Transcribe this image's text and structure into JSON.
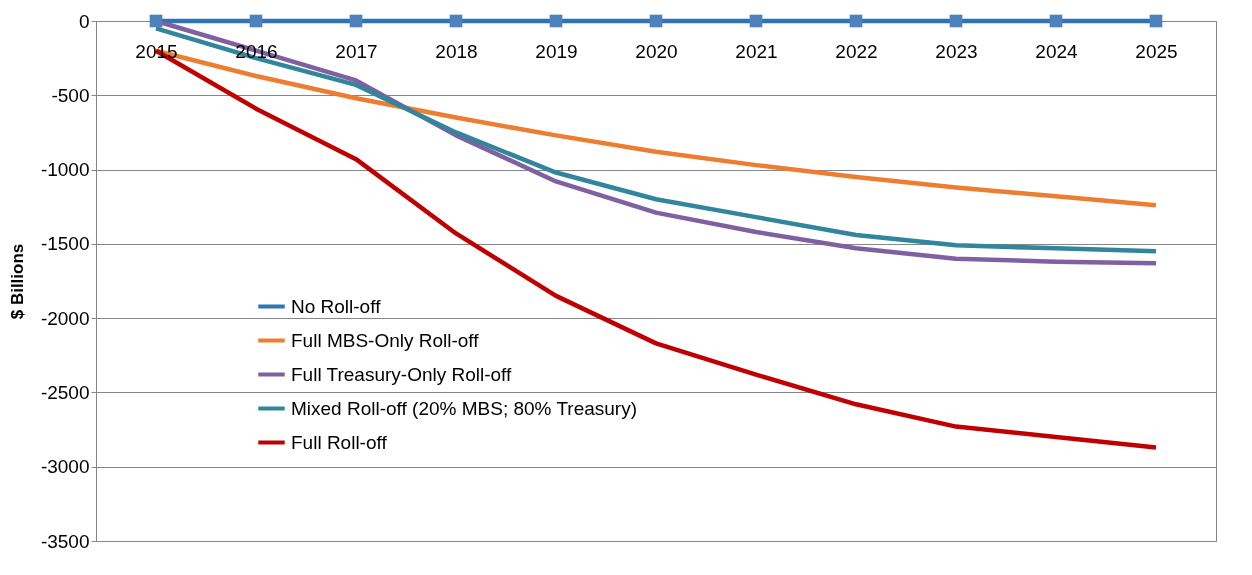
{
  "chart_data": {
    "type": "line",
    "ylabel": "$ Billions",
    "categories": [
      "2015",
      "2016",
      "2017",
      "2018",
      "2019",
      "2020",
      "2021",
      "2022",
      "2023",
      "2024",
      "2025"
    ],
    "series": [
      {
        "name": "No Roll-off",
        "color": "#2e75b6",
        "marker": "square",
        "values": [
          0,
          0,
          0,
          0,
          0,
          0,
          0,
          0,
          0,
          0,
          0
        ]
      },
      {
        "name": "Full MBS-Only Roll-off",
        "color": "#ed7d31",
        "values": [
          -200,
          -370,
          -520,
          -650,
          -770,
          -880,
          -970,
          -1050,
          -1120,
          -1180,
          -1240
        ]
      },
      {
        "name": "Full Treasury-Only Roll-off",
        "color": "#7f60a0",
        "values": [
          0,
          -200,
          -400,
          -770,
          -1080,
          -1290,
          -1420,
          -1530,
          -1600,
          -1620,
          -1630
        ]
      },
      {
        "name": "Mixed Roll-off (20% MBS; 80% Treasury)",
        "color": "#31859c",
        "values": [
          -50,
          -250,
          -430,
          -750,
          -1020,
          -1200,
          -1320,
          -1440,
          -1510,
          -1530,
          -1550
        ]
      },
      {
        "name": "Full Roll-off",
        "color": "#c00000",
        "values": [
          -200,
          -590,
          -930,
          -1430,
          -1850,
          -2170,
          -2380,
          -2580,
          -2730,
          -2800,
          -2870
        ]
      }
    ],
    "ylim": [
      -3500,
      0
    ],
    "yticks": [
      0,
      -500,
      -1000,
      -1500,
      -2000,
      -2500,
      -3000,
      -3500
    ],
    "grid": "y",
    "legend": "left",
    "line_style": "solid"
  }
}
